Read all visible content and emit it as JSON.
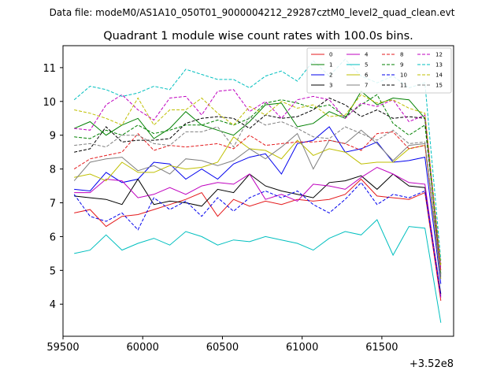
{
  "header": {
    "data_file": "Data file: modeM0/AS1A10_050T01_9000004212_29287cztM0_level2_quad_clean.evt"
  },
  "chart_data": {
    "type": "line",
    "title": "Quadrant 1 module wise count rates with 100.0s bins.",
    "xlabel": "",
    "ylabel": "",
    "x_offset_label": "+3.52e8",
    "xlim": [
      59500,
      61950
    ],
    "ylim": [
      3.05,
      11.65
    ],
    "x_ticks": [
      59500,
      60000,
      60500,
      61000,
      61500
    ],
    "x_tick_labels": [
      "59500",
      "60000",
      "60500",
      "61000",
      "61500"
    ],
    "y_ticks": [
      4,
      5,
      6,
      7,
      8,
      9,
      10,
      11
    ],
    "y_tick_labels": [
      "4",
      "5",
      "6",
      "7",
      "8",
      "9",
      "10",
      "11"
    ],
    "legend_position": "top-right",
    "x": [
      59570,
      59670,
      59770,
      59870,
      59970,
      60070,
      60170,
      60270,
      60370,
      60470,
      60570,
      60670,
      60770,
      60870,
      60970,
      61070,
      61170,
      61270,
      61370,
      61470,
      61570,
      61670,
      61770,
      61870
    ],
    "series": [
      {
        "name": "0",
        "color": "#e41a1c",
        "dash": false,
        "values": [
          6.7,
          6.8,
          6.3,
          6.6,
          6.65,
          6.8,
          6.95,
          7.1,
          7.3,
          6.6,
          7.1,
          6.9,
          7.05,
          6.95,
          7.1,
          7.05,
          7.1,
          7.25,
          7.7,
          7.2,
          7.15,
          7.1,
          7.3,
          4.1
        ]
      },
      {
        "name": "1",
        "color": "#008000",
        "dash": false,
        "values": [
          9.2,
          9.4,
          9.0,
          9.3,
          9.5,
          8.9,
          9.2,
          9.7,
          9.3,
          9.15,
          9.0,
          9.4,
          9.9,
          9.95,
          9.25,
          9.35,
          9.7,
          9.5,
          10.3,
          9.9,
          10.1,
          10.05,
          9.5,
          4.9
        ]
      },
      {
        "name": "2",
        "color": "#0000ee",
        "dash": false,
        "values": [
          7.4,
          7.35,
          7.9,
          7.6,
          7.7,
          8.2,
          8.15,
          7.7,
          8.0,
          7.7,
          8.15,
          8.35,
          8.45,
          7.85,
          8.75,
          8.85,
          9.25,
          8.5,
          8.6,
          8.8,
          8.2,
          8.25,
          8.35,
          4.6
        ]
      },
      {
        "name": "3",
        "color": "#000000",
        "dash": false,
        "values": [
          7.2,
          7.15,
          7.1,
          6.95,
          7.7,
          6.95,
          7.05,
          7.0,
          6.9,
          7.4,
          7.3,
          7.85,
          7.5,
          7.35,
          7.25,
          7.15,
          7.6,
          7.65,
          7.8,
          7.4,
          7.85,
          7.5,
          7.45,
          4.3
        ]
      },
      {
        "name": "4",
        "color": "#bf00bf",
        "dash": false,
        "values": [
          7.3,
          7.3,
          7.7,
          7.65,
          7.15,
          7.25,
          7.45,
          7.25,
          7.5,
          7.6,
          7.55,
          7.85,
          7.1,
          7.25,
          7.05,
          7.55,
          7.5,
          7.4,
          7.75,
          8.05,
          7.85,
          7.6,
          7.55,
          4.2
        ]
      },
      {
        "name": "5",
        "color": "#00bfbf",
        "dash": false,
        "values": [
          5.5,
          5.6,
          6.05,
          5.6,
          5.8,
          5.95,
          5.75,
          6.15,
          6.0,
          5.75,
          5.9,
          5.85,
          6.0,
          5.9,
          5.8,
          5.6,
          5.95,
          6.15,
          6.05,
          6.5,
          5.45,
          6.3,
          6.25,
          3.45
        ]
      },
      {
        "name": "6",
        "color": "#bfbf00",
        "dash": false,
        "values": [
          7.75,
          7.85,
          7.65,
          8.2,
          7.9,
          7.9,
          8.1,
          8.0,
          8.05,
          8.2,
          8.95,
          8.6,
          8.55,
          8.3,
          8.85,
          8.4,
          8.6,
          8.5,
          8.15,
          8.2,
          8.2,
          8.6,
          8.7,
          4.75
        ]
      },
      {
        "name": "7",
        "color": "#808080",
        "dash": false,
        "values": [
          7.65,
          8.2,
          8.3,
          8.35,
          7.95,
          8.1,
          7.85,
          8.3,
          8.25,
          8.1,
          8.25,
          8.6,
          8.3,
          8.65,
          9.05,
          8.0,
          8.85,
          8.75,
          9.15,
          8.75,
          8.25,
          8.7,
          8.75,
          4.8
        ]
      },
      {
        "name": "8",
        "color": "#e41a1c",
        "dash": true,
        "values": [
          8.0,
          8.3,
          8.4,
          8.5,
          9.05,
          8.55,
          8.7,
          8.65,
          8.7,
          8.75,
          8.6,
          9.0,
          8.7,
          8.75,
          8.8,
          8.8,
          8.85,
          8.75,
          8.55,
          9.05,
          9.1,
          8.6,
          8.7,
          5.0
        ]
      },
      {
        "name": "9",
        "color": "#008000",
        "dash": true,
        "values": [
          8.95,
          8.9,
          9.15,
          9.0,
          9.3,
          9.05,
          9.15,
          9.3,
          9.3,
          9.45,
          9.3,
          9.5,
          9.95,
          10.05,
          9.95,
          9.8,
          9.9,
          9.55,
          9.9,
          10.2,
          9.35,
          9.0,
          9.3,
          5.1
        ]
      },
      {
        "name": "10",
        "color": "#0000ee",
        "dash": true,
        "values": [
          7.25,
          6.6,
          6.45,
          6.7,
          6.2,
          7.15,
          6.8,
          7.05,
          6.6,
          7.15,
          6.75,
          7.15,
          7.35,
          7.15,
          7.35,
          6.95,
          6.7,
          7.1,
          7.6,
          6.95,
          7.25,
          7.15,
          7.35,
          4.25
        ]
      },
      {
        "name": "11",
        "color": "#000000",
        "dash": true,
        "values": [
          8.5,
          8.6,
          9.25,
          8.8,
          8.85,
          8.85,
          8.9,
          9.35,
          9.5,
          9.55,
          9.5,
          9.2,
          9.6,
          9.5,
          9.55,
          9.75,
          10.1,
          9.9,
          9.55,
          9.75,
          9.5,
          9.55,
          9.5,
          5.2
        ]
      },
      {
        "name": "12",
        "color": "#bf00bf",
        "dash": true,
        "values": [
          9.2,
          9.15,
          9.9,
          10.2,
          9.75,
          9.45,
          10.1,
          10.15,
          9.6,
          10.3,
          10.35,
          9.7,
          10.0,
          9.5,
          10.05,
          10.15,
          10.05,
          9.5,
          9.95,
          9.85,
          10.05,
          9.4,
          9.6,
          5.05
        ]
      },
      {
        "name": "13",
        "color": "#00bfbf",
        "dash": true,
        "values": [
          10.05,
          10.45,
          10.35,
          10.15,
          10.25,
          10.45,
          10.35,
          10.95,
          10.8,
          10.65,
          10.65,
          10.4,
          10.75,
          10.9,
          10.6,
          11.2,
          10.75,
          11.25,
          10.75,
          10.55,
          10.75,
          10.4,
          10.55,
          5.3
        ]
      },
      {
        "name": "14",
        "color": "#bfbf00",
        "dash": true,
        "values": [
          9.75,
          9.65,
          9.5,
          9.3,
          10.1,
          9.3,
          9.75,
          9.75,
          10.1,
          9.65,
          9.3,
          9.85,
          9.6,
          10.0,
          9.8,
          9.9,
          9.55,
          9.6,
          10.2,
          9.95,
          10.05,
          9.8,
          9.65,
          5.15
        ]
      },
      {
        "name": "15",
        "color": "#808080",
        "dash": true,
        "values": [
          8.7,
          8.75,
          8.65,
          9.0,
          9.0,
          8.75,
          8.7,
          9.1,
          9.1,
          9.25,
          8.65,
          9.55,
          9.3,
          9.4,
          9.2,
          8.95,
          8.9,
          9.25,
          9.05,
          8.85,
          9.15,
          8.75,
          8.8,
          4.85
        ]
      }
    ]
  }
}
